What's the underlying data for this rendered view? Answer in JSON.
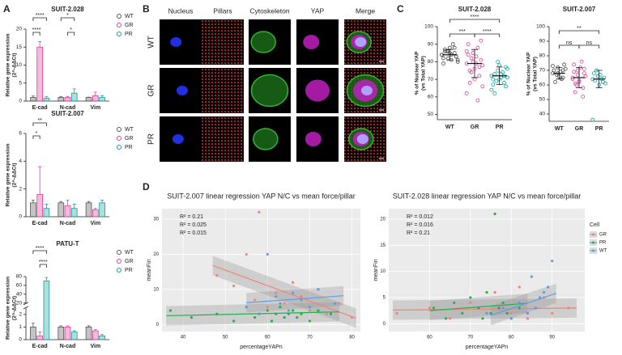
{
  "panel_labels": [
    "A",
    "B",
    "C",
    "D"
  ],
  "image_grid": {
    "columns": [
      "Nucleus",
      "Pillars",
      "Cytoskeleton",
      "YAP",
      "Merge"
    ],
    "rows": [
      "WT",
      "GR",
      "PR"
    ]
  },
  "chart_data": [
    {
      "type": "bar",
      "title": "SUIT-2.028",
      "ylabel": [
        "Relative gene expression",
        "(2^-ΔΔCt)"
      ],
      "categories": [
        "E-cad",
        "N-cad",
        "Vim"
      ],
      "ylim": [
        0,
        20
      ],
      "yticks": [
        0,
        5,
        10,
        15,
        20
      ],
      "series": [
        {
          "name": "WT",
          "color": "#555555",
          "values": [
            1.0,
            1.0,
            1.0
          ],
          "errors": [
            0.4,
            0.3,
            0.1
          ]
        },
        {
          "name": "GR",
          "color": "#e0409c",
          "values": [
            15,
            1.0,
            1.5
          ],
          "errors": [
            1.5,
            0.3,
            1.0
          ]
        },
        {
          "name": "PR",
          "color": "#14a09a",
          "values": [
            0.8,
            2.2,
            1.0
          ],
          "errors": [
            0.5,
            1.2,
            0.5
          ]
        }
      ],
      "annotations": [
        "****",
        "****",
        "*",
        "*"
      ]
    },
    {
      "type": "bar",
      "title": "SUIT-2.007",
      "ylabel": [
        "Relative gene expression",
        "(2^-ΔΔCt)"
      ],
      "categories": [
        "E-cad",
        "N-cad",
        "Vim"
      ],
      "ylim": [
        0,
        6
      ],
      "yticks": [
        0,
        2,
        4,
        6
      ],
      "series": [
        {
          "name": "WT",
          "color": "#555555",
          "values": [
            1.0,
            1.0,
            1.0
          ],
          "errors": [
            0.2,
            0.1,
            0.1
          ]
        },
        {
          "name": "GR",
          "color": "#e0409c",
          "values": [
            1.6,
            0.8,
            0.5
          ],
          "errors": [
            2.0,
            0.4,
            0.1
          ]
        },
        {
          "name": "PR",
          "color": "#14a09a",
          "values": [
            0.6,
            0.6,
            1.0
          ],
          "errors": [
            0.3,
            0.3,
            0.2
          ]
        }
      ],
      "annotations": [
        "**",
        "*"
      ]
    },
    {
      "type": "bar",
      "title": "PATU-T",
      "ylabel": [
        "Relative gene expression",
        "(2^-ΔΔCt)"
      ],
      "categories": [
        "E-cad",
        "N-cad",
        "Vim"
      ],
      "ylim": [
        0,
        80
      ],
      "ybreak": [
        2.5,
        20
      ],
      "yticks": [
        0,
        1,
        2,
        20,
        40,
        60,
        80
      ],
      "series": [
        {
          "name": "WT",
          "color": "#555555",
          "values": [
            1.0,
            1.0,
            1.0
          ],
          "errors": [
            0.3,
            0.1,
            0.1
          ]
        },
        {
          "name": "GR",
          "color": "#e0409c",
          "values": [
            0.3,
            1.0,
            0.7
          ],
          "errors": [
            0.3,
            0.1,
            0.1
          ]
        },
        {
          "name": "PR",
          "color": "#14a09a",
          "values": [
            70,
            0.6,
            0.3
          ],
          "errors": [
            8,
            0.1,
            0.1
          ]
        }
      ],
      "annotations": [
        "****",
        "****"
      ]
    },
    {
      "type": "strip",
      "title": "SUIT-2.028",
      "ylabel": [
        "% of Nuclear YAP",
        "(vs Total YAP)"
      ],
      "ylim": [
        47,
        100
      ],
      "yticks": [
        50,
        60,
        70,
        80,
        90,
        100
      ],
      "groups": [
        {
          "name": "WT",
          "color": "#444444",
          "mean": 84,
          "sd": 3,
          "values": [
            84,
            86,
            88,
            82,
            85,
            83,
            87,
            81,
            80,
            86,
            90,
            84,
            82,
            85,
            79,
            88,
            83,
            86,
            84,
            81
          ]
        },
        {
          "name": "GR",
          "color": "#e0409c",
          "mean": 79,
          "sd": 8,
          "values": [
            79,
            85,
            72,
            90,
            76,
            81,
            68,
            83,
            78,
            74,
            88,
            62,
            80,
            77,
            84,
            70,
            92,
            75,
            79,
            66,
            82,
            58,
            86
          ]
        },
        {
          "name": "PR",
          "color": "#14a09a",
          "mean": 72,
          "sd": 5,
          "values": [
            72,
            75,
            68,
            70,
            78,
            66,
            73,
            71,
            76,
            69,
            74,
            64,
            80,
            72,
            67,
            70,
            77,
            62,
            73,
            71
          ]
        }
      ],
      "annotations": [
        "****",
        "***",
        "****"
      ]
    },
    {
      "type": "strip",
      "title": "SUIT-2.007",
      "ylabel": [
        "% of Nuclear YAP",
        "(vs Total YAP)"
      ],
      "ylim": [
        35,
        100
      ],
      "yticks": [
        40,
        50,
        60,
        70,
        80,
        90,
        100
      ],
      "groups": [
        {
          "name": "WT",
          "color": "#444444",
          "mean": 68,
          "sd": 4,
          "values": [
            68,
            72,
            65,
            70,
            66,
            74,
            62,
            69,
            71,
            67,
            64,
            73,
            68,
            70
          ]
        },
        {
          "name": "GR",
          "color": "#e0409c",
          "mean": 65,
          "sd": 7,
          "values": [
            65,
            70,
            58,
            74,
            62,
            68,
            55,
            72,
            66,
            60,
            76,
            64,
            67,
            52,
            69,
            63,
            71,
            61
          ]
        },
        {
          "name": "PR",
          "color": "#14a09a",
          "mean": 64,
          "sd": 6,
          "values": [
            64,
            66,
            62,
            68,
            60,
            65,
            63,
            67,
            61,
            70,
            64,
            36,
            66,
            62
          ]
        }
      ],
      "annotations": [
        "**",
        "ns",
        "ns"
      ]
    },
    {
      "type": "scatter",
      "title": "SUIT-2.007 linear regression YAP N/C vs  mean force/pillar",
      "xlabel": "percentageYAPn",
      "ylabel": "meanFin",
      "xlim": [
        35,
        82
      ],
      "ylim": [
        -2,
        33
      ],
      "xticks": [
        40,
        50,
        60,
        70,
        80
      ],
      "yticks": [
        0,
        10,
        20,
        30
      ],
      "grid": true,
      "series": [
        {
          "name": "GR",
          "color": "#f0837b",
          "r2_label": "R² = 0.21",
          "x": [
            48,
            52,
            55,
            57,
            58,
            60,
            62,
            64,
            66,
            68,
            70,
            72,
            74,
            77,
            80
          ],
          "y": [
            14,
            11,
            20,
            7,
            32,
            5,
            9,
            6,
            12,
            8,
            4,
            10,
            3,
            6,
            2
          ],
          "fit_x": [
            47,
            81
          ],
          "fit_y": [
            16.8,
            1.8
          ]
        },
        {
          "name": "PR",
          "color": "#22b14c",
          "r2_label": "R² = 0.025",
          "x": [
            37,
            42,
            48,
            52,
            55,
            57,
            58,
            60,
            61,
            62,
            63,
            64,
            65,
            66,
            67,
            68,
            70,
            72,
            75
          ],
          "y": [
            4,
            2,
            3,
            1,
            5,
            2,
            3,
            4,
            1,
            3,
            5,
            2,
            3,
            4,
            2,
            3,
            1,
            4,
            3
          ],
          "fit_x": [
            36,
            77
          ],
          "fit_y": [
            2.5,
            3.6
          ]
        },
        {
          "name": "WT",
          "color": "#5b9ee6",
          "r2_label": "R² = 0.015",
          "x": [
            55,
            58,
            60,
            62,
            63,
            65,
            66,
            68,
            70,
            72,
            76
          ],
          "y": [
            5,
            3,
            20,
            8,
            6,
            4,
            9,
            7,
            5,
            10,
            6
          ],
          "fit_x": [
            55,
            78
          ],
          "fit_y": [
            6.2,
            8.2
          ]
        }
      ]
    },
    {
      "type": "scatter",
      "title": "SUIT-2.028 linear regression YAP N/C vs  mean force/pillar",
      "xlabel": "percentageYAPn",
      "ylabel": "meanFin",
      "xlim": [
        50,
        98
      ],
      "ylim": [
        -1.5,
        22
      ],
      "xticks": [
        60,
        70,
        80,
        90
      ],
      "yticks": [
        0,
        5,
        10,
        15,
        20
      ],
      "grid": true,
      "legend_title": "Cell",
      "series": [
        {
          "name": "GR",
          "color": "#f0837b",
          "r2_label": "R² = 0.012",
          "x": [
            52,
            60,
            65,
            70,
            74,
            76,
            78,
            80,
            82,
            84,
            86,
            88,
            90,
            94
          ],
          "y": [
            2,
            3,
            1,
            4,
            2,
            6,
            3,
            2,
            7,
            1,
            3,
            5,
            2,
            3
          ],
          "fit_x": [
            51,
            96
          ],
          "fit_y": [
            2.6,
            3.0
          ]
        },
        {
          "name": "PR",
          "color": "#22b14c",
          "r2_label": "R² = 0.016",
          "x": [
            61,
            64,
            66,
            68,
            70,
            72,
            73,
            74,
            75,
            76,
            77,
            78,
            79,
            80,
            82
          ],
          "y": [
            3,
            1,
            4,
            2,
            5,
            3,
            1,
            6,
            2,
            21,
            3,
            4,
            2,
            1,
            3
          ],
          "fit_x": [
            60,
            84
          ],
          "fit_y": [
            2.5,
            3.9
          ]
        },
        {
          "name": "WT",
          "color": "#5b9ee6",
          "r2_label": "R² = 0.21",
          "x": [
            74,
            78,
            80,
            82,
            84,
            85,
            86,
            87,
            88,
            89,
            90
          ],
          "y": [
            2,
            3,
            1,
            4,
            2,
            9,
            3,
            5,
            6,
            7,
            12
          ],
          "fit_x": [
            75,
            91
          ],
          "fit_y": [
            1.6,
            5.8
          ]
        }
      ]
    }
  ]
}
